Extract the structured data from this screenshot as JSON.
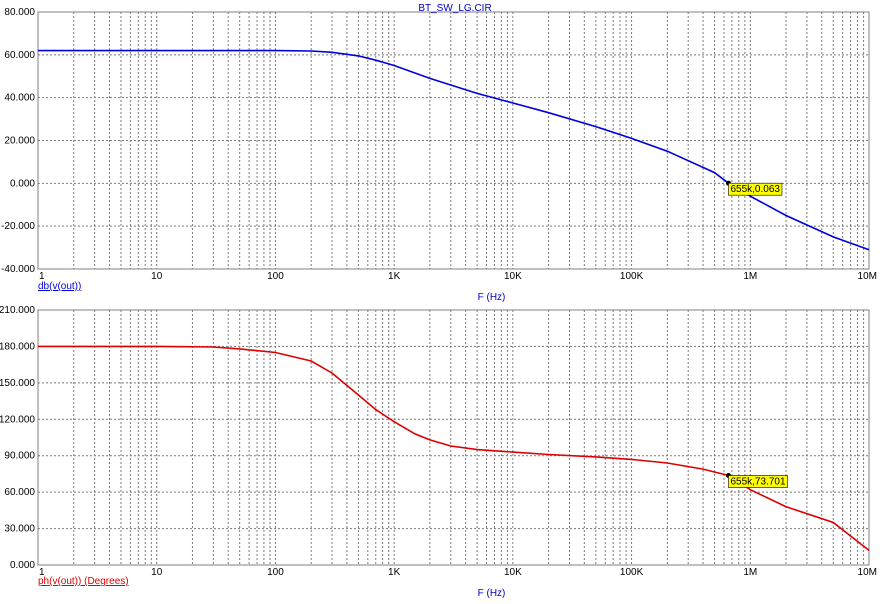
{
  "title": "BT_SW_LG.CIR",
  "chart_data": [
    {
      "type": "line",
      "series": [
        {
          "name": "db(v(out))",
          "color": "#0000dd",
          "x": [
            1,
            10,
            100,
            200,
            300,
            500,
            700,
            1000,
            2000,
            5000,
            10000,
            20000,
            50000,
            100000,
            200000,
            500000,
            655000,
            1000000,
            2000000,
            5000000,
            10000000
          ],
          "y": [
            62,
            62,
            62,
            61.8,
            61.2,
            59.5,
            57.5,
            55,
            49,
            42,
            37.5,
            33,
            26.5,
            21,
            15,
            5,
            0.063,
            -6,
            -15,
            -25,
            -31
          ]
        }
      ],
      "xlabel": "F (Hz)",
      "ylabel": "db(v(out))",
      "xscale": "log",
      "xlim": [
        1,
        10000000
      ],
      "ylim": [
        -40,
        80
      ],
      "xtick_values": [
        1,
        10,
        100,
        1000,
        10000,
        100000,
        1000000,
        10000000
      ],
      "xtick_labels": [
        "1",
        "10",
        "100",
        "1K",
        "10K",
        "100K",
        "1M",
        "10M"
      ],
      "ytick_values": [
        -40,
        -20,
        0,
        20,
        40,
        60,
        80
      ],
      "ytick_labels": [
        "-40.000",
        "-20.000",
        "0.000",
        "20.000",
        "40.000",
        "60.000",
        "80.000"
      ],
      "grid": true,
      "cursor": {
        "x": 655000,
        "y": 0.063,
        "label": "655k,0.063"
      }
    },
    {
      "type": "line",
      "series": [
        {
          "name": "ph(v(out)) (Degrees)",
          "color": "#dd0000",
          "x": [
            1,
            10,
            30,
            50,
            100,
            200,
            300,
            500,
            700,
            1000,
            1500,
            2000,
            3000,
            5000,
            10000,
            20000,
            50000,
            100000,
            200000,
            400000,
            655000,
            1000000,
            2000000,
            5000000,
            10000000
          ],
          "y": [
            180,
            180,
            179.5,
            178,
            175,
            168,
            158,
            140,
            128,
            118,
            108,
            103,
            98,
            95,
            93,
            91,
            89,
            87,
            84,
            79,
            73.701,
            62,
            48,
            35,
            12
          ]
        }
      ],
      "xlabel": "F (Hz)",
      "ylabel": "ph(v(out)) (Degrees)",
      "xscale": "log",
      "xlim": [
        1,
        10000000
      ],
      "ylim": [
        0,
        210
      ],
      "xtick_values": [
        1,
        10,
        100,
        1000,
        10000,
        100000,
        1000000,
        10000000
      ],
      "xtick_labels": [
        "1",
        "10",
        "100",
        "1K",
        "10K",
        "100K",
        "1M",
        "10M"
      ],
      "ytick_values": [
        0,
        30,
        60,
        90,
        120,
        150,
        180,
        210
      ],
      "ytick_labels": [
        "0.000",
        "30.000",
        "60.000",
        "90.000",
        "120.000",
        "150.000",
        "180.000",
        "210.000"
      ],
      "grid": true,
      "cursor": {
        "x": 655000,
        "y": 73.701,
        "label": "655k,73.701"
      }
    }
  ]
}
